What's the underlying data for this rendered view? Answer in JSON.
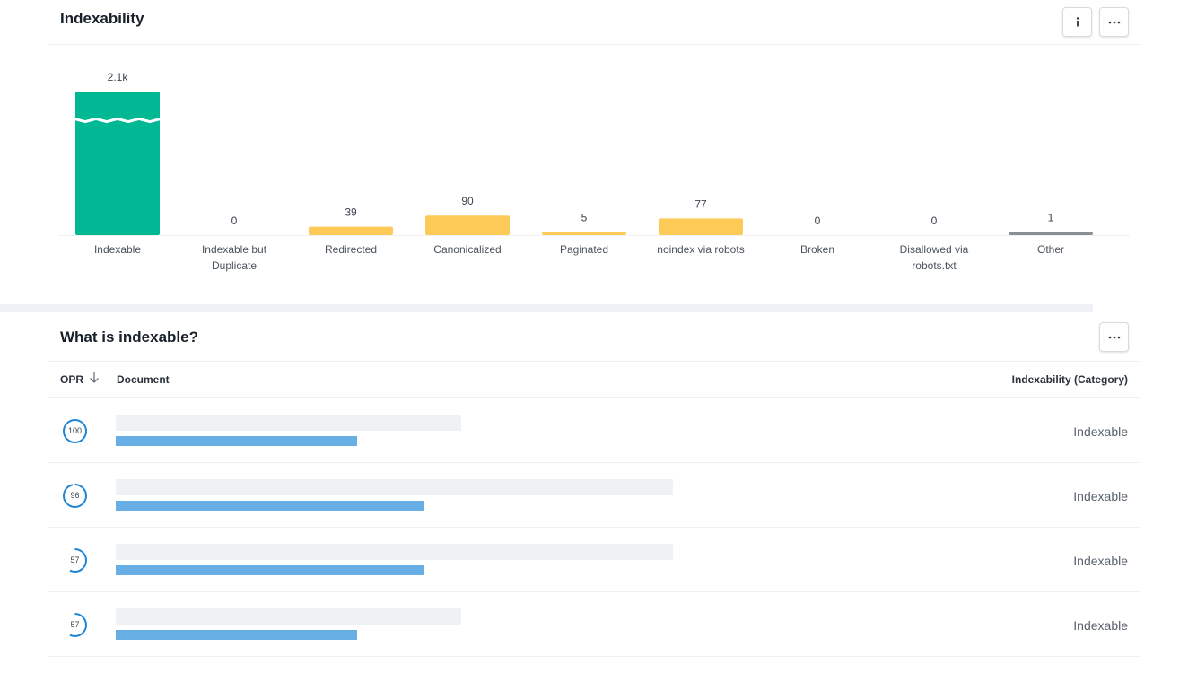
{
  "indexability": {
    "title": "Indexability",
    "info_icon": "info-icon",
    "more_icon": "more-horizontal-icon"
  },
  "colors": {
    "indexable": "#00b894",
    "non_indexable": "#fdca57",
    "other": "#8a8f96",
    "link": "#67aee4",
    "ring": "#1f86d6"
  },
  "chart_data": {
    "type": "bar",
    "categories": [
      "Indexable",
      "Indexable but Duplicate",
      "Redirected",
      "Canonicalized",
      "Paginated",
      "noindex via robots",
      "Broken",
      "Disallowed via robots.txt",
      "Other"
    ],
    "category_lines": [
      [
        "Indexable"
      ],
      [
        "Indexable but",
        "Duplicate"
      ],
      [
        "Redirected"
      ],
      [
        "Canonicalized"
      ],
      [
        "Paginated"
      ],
      [
        "noindex via robots"
      ],
      [
        "Broken"
      ],
      [
        "Disallowed via",
        "robots.txt"
      ],
      [
        "Other"
      ]
    ],
    "values": [
      2100,
      0,
      39,
      90,
      5,
      77,
      0,
      0,
      1
    ],
    "value_labels": [
      "2.1k",
      "0",
      "39",
      "90",
      "5",
      "77",
      "0",
      "0",
      "1"
    ],
    "bar_colors": [
      "#00b894",
      "#fdca57",
      "#fdca57",
      "#fdca57",
      "#fdca57",
      "#fdca57",
      "#fdca57",
      "#fdca57",
      "#8a8f96"
    ],
    "axis_break": true,
    "grid": false,
    "legend": "none"
  },
  "table": {
    "title": "What is indexable?",
    "more_icon": "more-horizontal-icon",
    "headers": {
      "opr": "OPR",
      "document": "Document",
      "category": "Indexability (Category)"
    },
    "sort_icon": "arrow-down-icon",
    "rows": [
      {
        "opr": "100",
        "opr_fraction": 1.0,
        "category": "Indexable",
        "title_width_fraction": 0.62,
        "url_width_fraction": 0.43
      },
      {
        "opr": "96",
        "opr_fraction": 0.96,
        "category": "Indexable",
        "title_width_fraction": 1.0,
        "url_width_fraction": 0.55
      },
      {
        "opr": "57",
        "opr_fraction": 0.57,
        "category": "Indexable",
        "title_width_fraction": 1.0,
        "url_width_fraction": 0.55
      },
      {
        "opr": "57",
        "opr_fraction": 0.57,
        "category": "Indexable",
        "title_width_fraction": 0.62,
        "url_width_fraction": 0.43
      }
    ]
  }
}
